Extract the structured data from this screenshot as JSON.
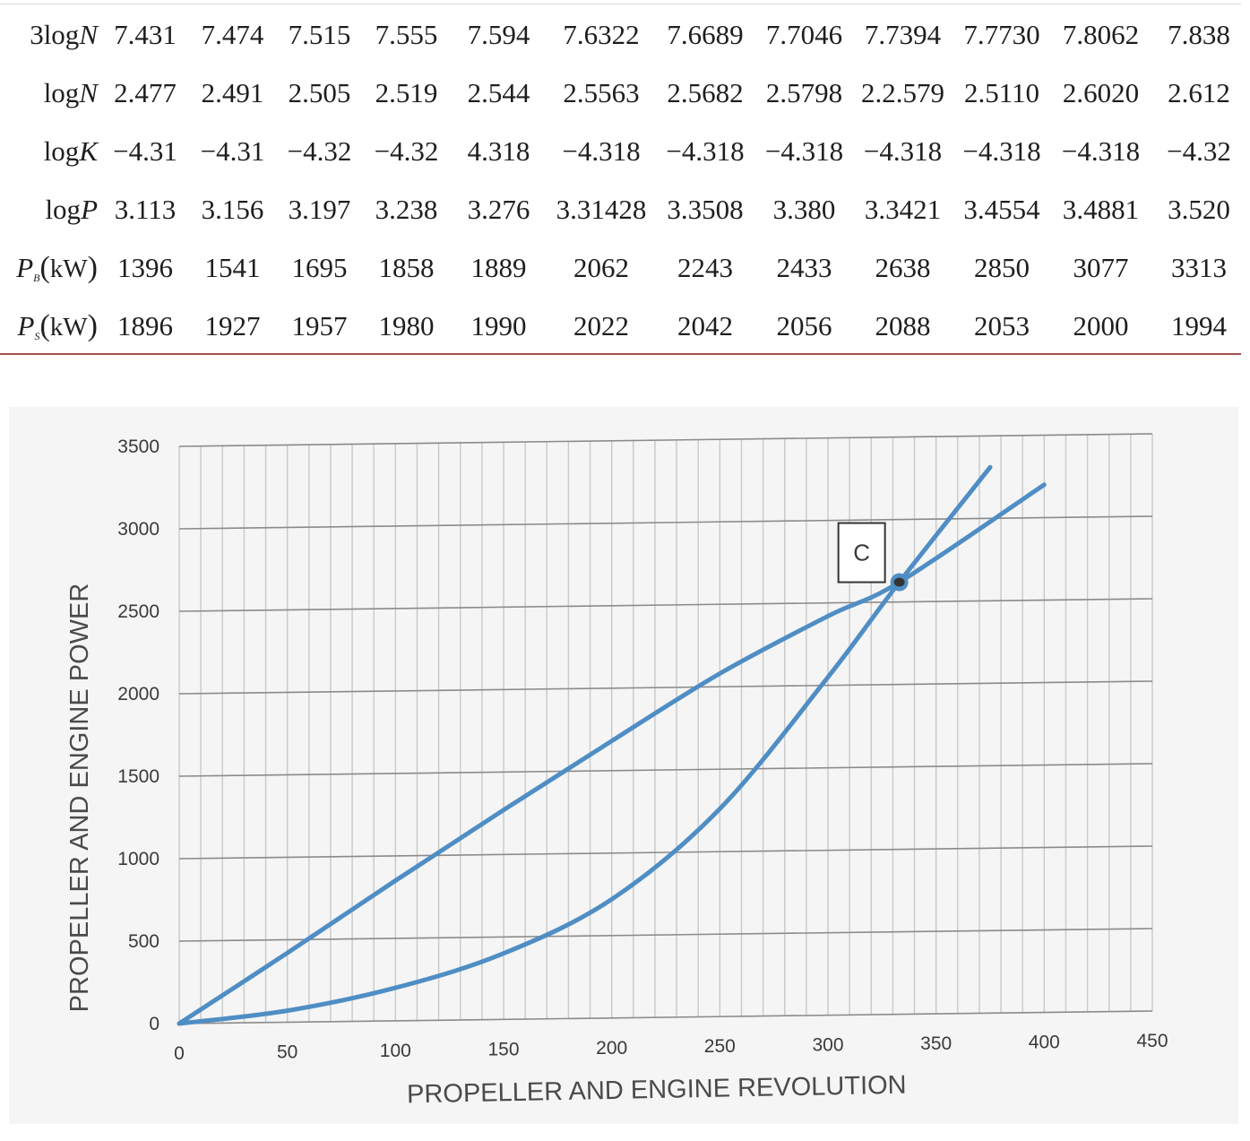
{
  "table": {
    "rows": [
      {
        "label_prefix": "3log",
        "label_symbol": "N",
        "label_sub": "",
        "label_unit": "",
        "values": [
          "7.431",
          "7.474",
          "7.515",
          "7.555",
          "7.594",
          "7.6322",
          "7.6689",
          "7.7046",
          "7.7394",
          "7.7730",
          "7.8062",
          "7.838"
        ]
      },
      {
        "label_prefix": "log",
        "label_symbol": "N",
        "label_sub": "",
        "label_unit": "",
        "values": [
          "2.477",
          "2.491",
          "2.505",
          "2.519",
          "2.544",
          "2.5563",
          "2.5682",
          "2.5798",
          "2.2.579",
          "2.5110",
          "2.6020",
          "2.612"
        ]
      },
      {
        "label_prefix": "log",
        "label_symbol": "K",
        "label_sub": "",
        "label_unit": "",
        "values": [
          "−4.31",
          "−4.31",
          "−4.32",
          "−4.32",
          "4.318",
          "−4.318",
          "−4.318",
          "−4.318",
          "−4.318",
          "−4.318",
          "−4.318",
          "−4.32"
        ]
      },
      {
        "label_prefix": "log",
        "label_symbol": "P",
        "label_sub": "",
        "label_unit": "",
        "values": [
          "3.113",
          "3.156",
          "3.197",
          "3.238",
          "3.276",
          "3.31428",
          "3.3508",
          "3.380",
          "3.3421",
          "3.4554",
          "3.4881",
          "3.520"
        ]
      },
      {
        "label_prefix": "",
        "label_symbol": "P",
        "label_sub": "B",
        "label_unit": "kW",
        "values": [
          "1396",
          "1541",
          "1695",
          "1858",
          "1889",
          "2062",
          "2243",
          "2433",
          "2638",
          "2850",
          "3077",
          "3313"
        ]
      },
      {
        "label_prefix": "",
        "label_symbol": "P",
        "label_sub": "S",
        "label_unit": "kW",
        "values": [
          "1896",
          "1927",
          "1957",
          "1980",
          "1990",
          "2022",
          "2042",
          "2056",
          "2088",
          "2053",
          "2000",
          "1994"
        ]
      }
    ]
  },
  "chart_data": {
    "type": "line",
    "title": "",
    "xlabel": "PROPELLER AND ENGINE REVOLUTION",
    "ylabel": "PROPELLER AND ENGINE POWER",
    "xlim": [
      0,
      450
    ],
    "ylim": [
      0,
      3500
    ],
    "x_ticks": [
      0,
      50,
      100,
      150,
      200,
      250,
      300,
      350,
      400,
      450
    ],
    "y_ticks": [
      0,
      500,
      1000,
      1500,
      2000,
      2500,
      3000,
      3500
    ],
    "grid": true,
    "series": [
      {
        "points": [
          [
            0,
            0
          ],
          [
            50,
            420
          ],
          [
            100,
            850
          ],
          [
            150,
            1270
          ],
          [
            200,
            1680
          ],
          [
            250,
            2080
          ],
          [
            300,
            2420
          ],
          [
            333,
            2620
          ],
          [
            400,
            3200
          ]
        ]
      },
      {
        "points": [
          [
            0,
            0
          ],
          [
            50,
            70
          ],
          [
            100,
            200
          ],
          [
            150,
            400
          ],
          [
            200,
            720
          ],
          [
            250,
            1260
          ],
          [
            300,
            2050
          ],
          [
            333,
            2620
          ],
          [
            375,
            3310
          ]
        ]
      }
    ],
    "color": "#4f8ec4",
    "annotations": [
      {
        "label": "C",
        "x": 333,
        "y": 2620
      }
    ]
  }
}
